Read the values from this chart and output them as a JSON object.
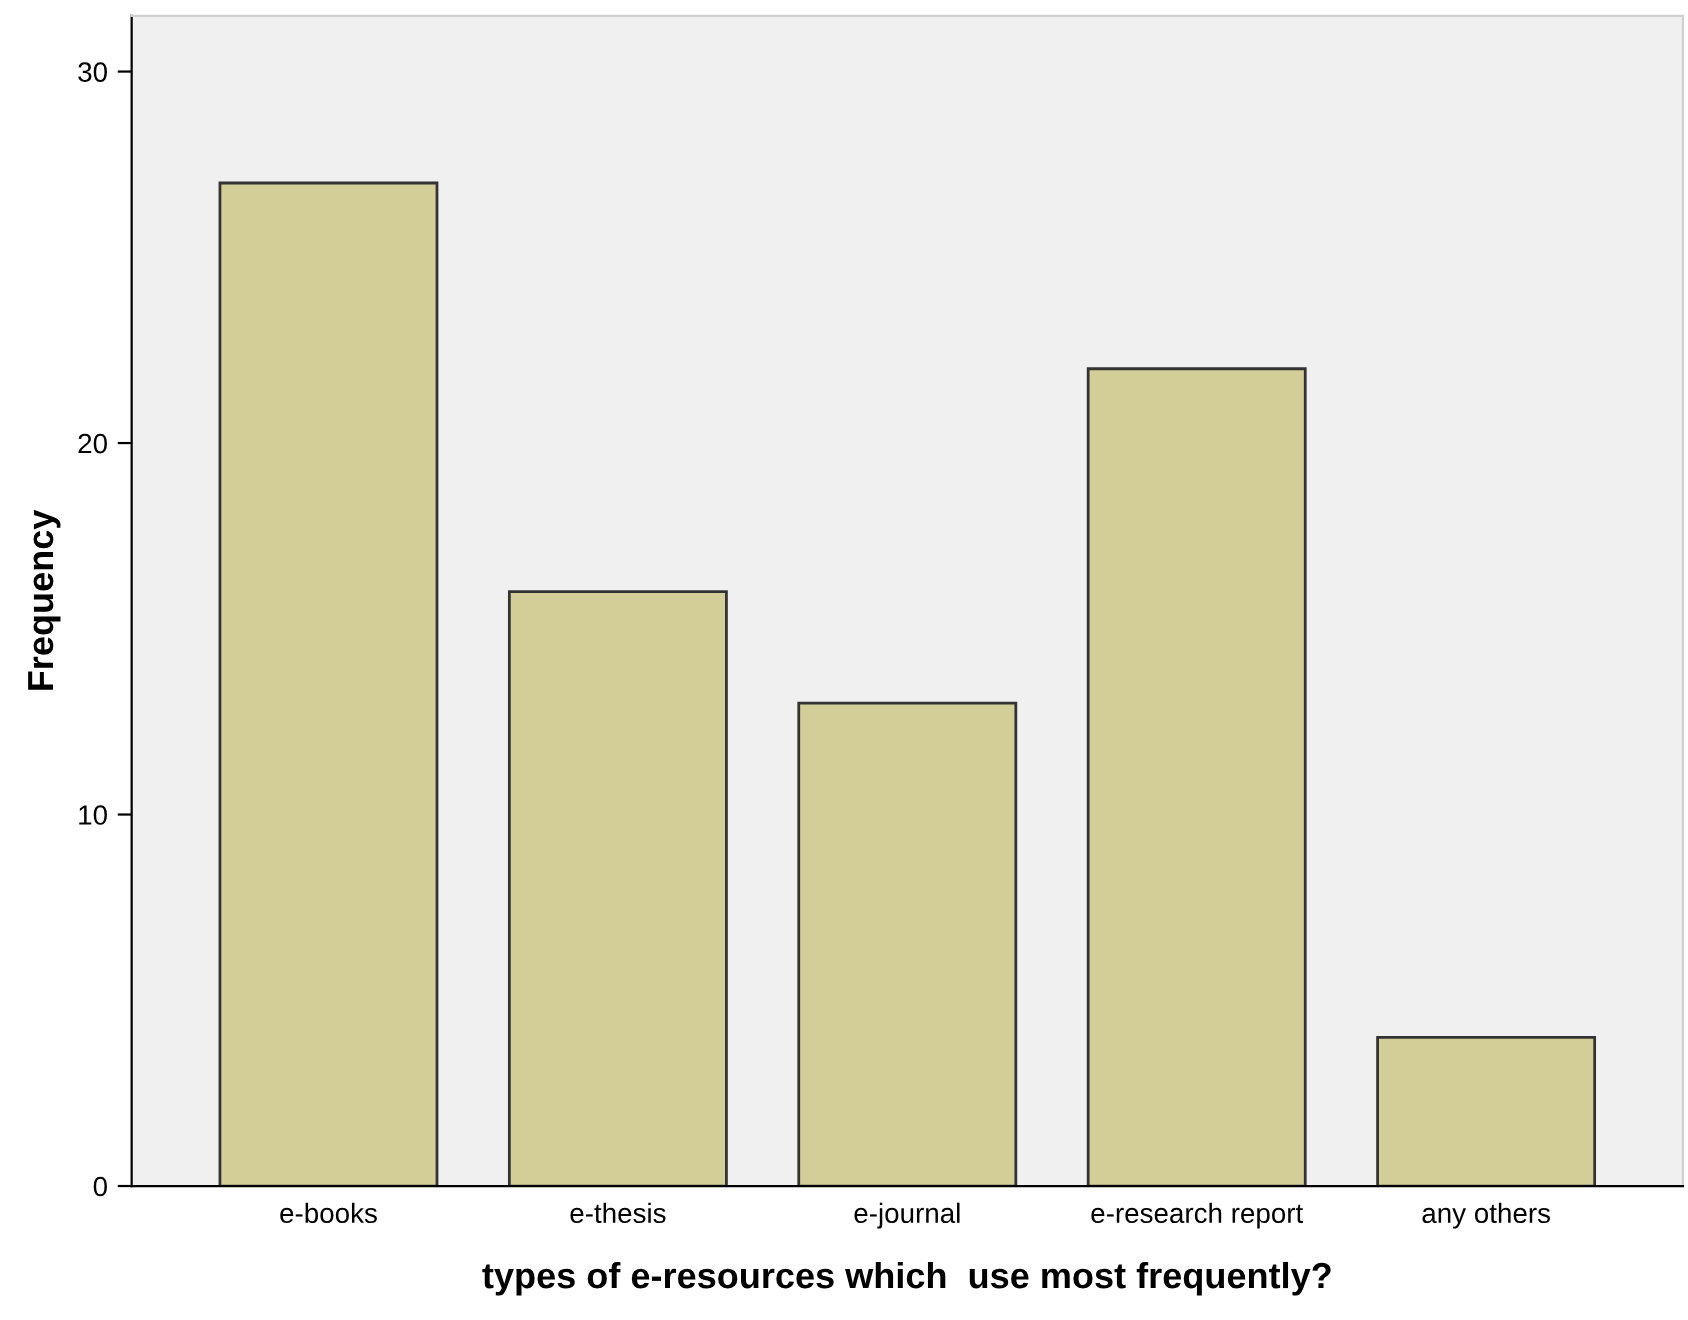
{
  "chart_data": {
    "type": "bar",
    "xlabel": "types of e-resources which  use most frequently?",
    "ylabel": "Frequency",
    "categories": [
      "e-books",
      "e-thesis",
      "e-journal",
      "e-research report",
      "any others"
    ],
    "values": [
      27,
      16,
      13,
      22,
      4
    ],
    "color": "#d3ce97",
    "ylim": [
      0,
      31.5
    ],
    "yticks": [
      0,
      10,
      20,
      30
    ],
    "grid": false,
    "legend": false
  }
}
